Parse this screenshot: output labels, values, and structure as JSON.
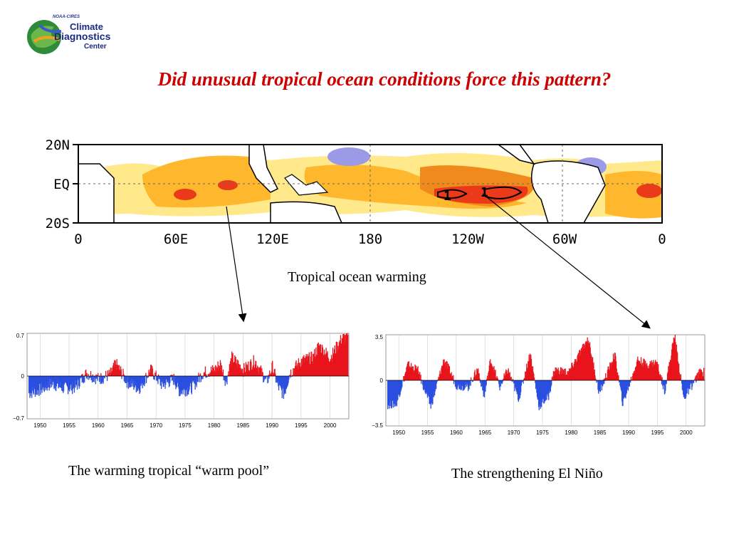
{
  "logo": {
    "org_line": "NOAA-CIRES",
    "line1": "Climate",
    "line2": "Diagnostics",
    "line3": "Center"
  },
  "slide_title": "Did unusual tropical ocean conditions force this pattern?",
  "map": {
    "caption": "Tropical ocean warming",
    "lat_labels": [
      "20N",
      "EQ",
      "20S"
    ],
    "lon_labels": [
      "0",
      "60E",
      "120E",
      "180",
      "120W",
      "60W",
      "0"
    ],
    "contour_labels": [
      "1",
      "1"
    ],
    "colors": {
      "warm_light": "#ffe98a",
      "warm": "#ffb72e",
      "warm_strong": "#f08a1c",
      "hot": "#ea3a1a",
      "cool": "#9a9ae6"
    }
  },
  "chart_data": [
    {
      "type": "bar",
      "title": "",
      "caption": "The warming tropical “warm pool”",
      "x": "monthly, 1948–2003",
      "x_ticks": [
        "1950",
        "1955",
        "1960",
        "1965",
        "1970",
        "1975",
        "1980",
        "1985",
        "1990",
        "1995",
        "2000"
      ],
      "y_ticks": [
        "0.7",
        "0",
        "−0.7"
      ],
      "ylim": [
        -0.7,
        0.7
      ],
      "positive_color": "#e8141c",
      "negative_color": "#2a4ee0",
      "decadal_anomaly_values": [
        {
          "year": 1948,
          "value": -0.28
        },
        {
          "year": 1950,
          "value": -0.22
        },
        {
          "year": 1952,
          "value": -0.12
        },
        {
          "year": 1954,
          "value": -0.2
        },
        {
          "year": 1956,
          "value": -0.18
        },
        {
          "year": 1958,
          "value": 0.05
        },
        {
          "year": 1960,
          "value": -0.05
        },
        {
          "year": 1962,
          "value": 0.02
        },
        {
          "year": 1963,
          "value": 0.2
        },
        {
          "year": 1965,
          "value": -0.1
        },
        {
          "year": 1967,
          "value": -0.2
        },
        {
          "year": 1969,
          "value": 0.1
        },
        {
          "year": 1971,
          "value": -0.15
        },
        {
          "year": 1973,
          "value": -0.05
        },
        {
          "year": 1974,
          "value": -0.25
        },
        {
          "year": 1976,
          "value": -0.2
        },
        {
          "year": 1978,
          "value": 0.05
        },
        {
          "year": 1980,
          "value": 0.1
        },
        {
          "year": 1981,
          "value": 0.2
        },
        {
          "year": 1982,
          "value": -0.1
        },
        {
          "year": 1983,
          "value": 0.3
        },
        {
          "year": 1985,
          "value": 0.1
        },
        {
          "year": 1987,
          "value": 0.25
        },
        {
          "year": 1989,
          "value": -0.1
        },
        {
          "year": 1990,
          "value": 0.15
        },
        {
          "year": 1991,
          "value": -0.18
        },
        {
          "year": 1992,
          "value": -0.3
        },
        {
          "year": 1993,
          "value": 0.05
        },
        {
          "year": 1995,
          "value": 0.25
        },
        {
          "year": 1997,
          "value": 0.3
        },
        {
          "year": 1998,
          "value": 0.5
        },
        {
          "year": 2000,
          "value": 0.3
        },
        {
          "year": 2002,
          "value": 0.62
        }
      ]
    },
    {
      "type": "bar",
      "title": "",
      "caption": "The strengthening El Niño",
      "x": "monthly, 1948–2003",
      "x_ticks": [
        "1950",
        "1955",
        "1960",
        "1965",
        "1970",
        "1975",
        "1980",
        "1985",
        "1990",
        "1995",
        "2000"
      ],
      "y_ticks": [
        "3.5",
        "0",
        "−3.5"
      ],
      "ylim": [
        -3.5,
        3.5
      ],
      "positive_color": "#e8141c",
      "negative_color": "#2a4ee0",
      "event_anomaly_values": [
        {
          "year": 1949.5,
          "value": -1.8
        },
        {
          "year": 1951.5,
          "value": 1.2
        },
        {
          "year": 1953.2,
          "value": 0.8
        },
        {
          "year": 1955.5,
          "value": -2.0
        },
        {
          "year": 1957.8,
          "value": 1.6
        },
        {
          "year": 1960.0,
          "value": -0.4
        },
        {
          "year": 1962.0,
          "value": -0.5
        },
        {
          "year": 1963.7,
          "value": 0.9
        },
        {
          "year": 1964.8,
          "value": -1.3
        },
        {
          "year": 1965.9,
          "value": 1.6
        },
        {
          "year": 1967.5,
          "value": -0.5
        },
        {
          "year": 1968.9,
          "value": 0.8
        },
        {
          "year": 1970.8,
          "value": -1.4
        },
        {
          "year": 1972.8,
          "value": 2.1
        },
        {
          "year": 1974.3,
          "value": -2.0
        },
        {
          "year": 1976.0,
          "value": -1.2
        },
        {
          "year": 1977.0,
          "value": 0.8
        },
        {
          "year": 1979.5,
          "value": 0.6
        },
        {
          "year": 1982.9,
          "value": 3.2
        },
        {
          "year": 1984.8,
          "value": -1.0
        },
        {
          "year": 1987.5,
          "value": 2.0
        },
        {
          "year": 1988.9,
          "value": -1.8
        },
        {
          "year": 1991.5,
          "value": 1.6
        },
        {
          "year": 1993.0,
          "value": 1.2
        },
        {
          "year": 1994.8,
          "value": 1.4
        },
        {
          "year": 1996.2,
          "value": -0.8
        },
        {
          "year": 1997.9,
          "value": 3.5
        },
        {
          "year": 1999.5,
          "value": -1.4
        },
        {
          "year": 2002.3,
          "value": 0.6
        }
      ]
    }
  ]
}
